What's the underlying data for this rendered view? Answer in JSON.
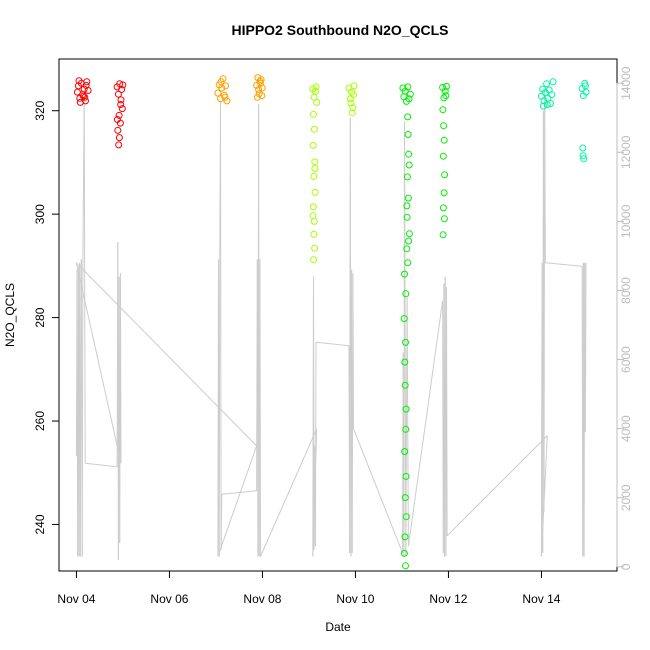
{
  "chart_data": {
    "type": "scatter",
    "title": "HIPPO2 Southbound N2O_QCLS",
    "xlabel": "Date",
    "ylabel": "N2O_QCLS",
    "xlim": [
      "2009-11-03T15:00",
      "2009-11-15T15:00"
    ],
    "ylim": [
      231,
      330
    ],
    "y2lim": [
      -120,
      14700
    ],
    "x_ticks": [
      {
        "label": "Nov 04",
        "value": "2009-11-04T00:00"
      },
      {
        "label": "Nov 06",
        "value": "2009-11-06T00:00"
      },
      {
        "label": "Nov 08",
        "value": "2009-11-08T00:00"
      },
      {
        "label": "Nov 10",
        "value": "2009-11-10T00:00"
      },
      {
        "label": "Nov 12",
        "value": "2009-11-12T00:00"
      },
      {
        "label": "Nov 14",
        "value": "2009-11-14T00:00"
      }
    ],
    "y_ticks": [
      {
        "label": "240",
        "value": 240
      },
      {
        "label": "260",
        "value": 260
      },
      {
        "label": "280",
        "value": 280
      },
      {
        "label": "300",
        "value": 300
      },
      {
        "label": "320",
        "value": 320
      }
    ],
    "y2_ticks": [
      {
        "label": "0",
        "value": 0
      },
      {
        "label": "2000",
        "value": 2000
      },
      {
        "label": "4000",
        "value": 4000
      },
      {
        "label": "6000",
        "value": 6000
      },
      {
        "label": "8000",
        "value": 8000
      },
      {
        "label": "10000",
        "value": 10000
      },
      {
        "label": "12000",
        "value": 12000
      },
      {
        "label": "14000",
        "value": 14000
      }
    ],
    "series": [
      {
        "color": "#ff0000",
        "points": [
          [
            "2009-11-04T00:30",
            323.6
          ],
          [
            "2009-11-04T01:00",
            324.8
          ],
          [
            "2009-11-04T01:45",
            322.4
          ],
          [
            "2009-11-04T02:30",
            325.3
          ],
          [
            "2009-11-04T03:15",
            323.1
          ],
          [
            "2009-11-04T04:00",
            324.2
          ],
          [
            "2009-11-04T04:40",
            321.9
          ],
          [
            "2009-11-04T05:20",
            325.6
          ],
          [
            "2009-11-04T06:00",
            323.9
          ],
          [
            "2009-11-04T02:00",
            321.6
          ],
          [
            "2009-11-04T03:40",
            322.8
          ],
          [
            "2009-11-04T05:00",
            324.9
          ],
          [
            "2009-11-04T01:20",
            325.8
          ],
          [
            "2009-11-04T04:20",
            322.6
          ]
        ]
      },
      {
        "color": "#ff0000",
        "points": [
          [
            "2009-11-04T21:00",
            324.6
          ],
          [
            "2009-11-04T21:40",
            323.2
          ],
          [
            "2009-11-04T22:20",
            325.2
          ],
          [
            "2009-11-04T23:00",
            322.1
          ],
          [
            "2009-11-04T23:40",
            320.4
          ],
          [
            "2009-11-04T22:00",
            319.1
          ],
          [
            "2009-11-04T22:40",
            317.6
          ],
          [
            "2009-11-04T21:20",
            316.2
          ],
          [
            "2009-11-04T22:10",
            314.8
          ],
          [
            "2009-11-04T21:50",
            313.4
          ],
          [
            "2009-11-04T23:20",
            324.1
          ],
          [
            "2009-11-04T23:55",
            325.0
          ],
          [
            "2009-11-04T21:10",
            318.3
          ],
          [
            "2009-11-04T22:50",
            321.2
          ]
        ]
      },
      {
        "color": "#ff9f00",
        "points": [
          [
            "2009-11-07T01:00",
            323.4
          ],
          [
            "2009-11-07T01:40",
            325.0
          ],
          [
            "2009-11-07T02:20",
            322.3
          ],
          [
            "2009-11-07T03:00",
            324.4
          ],
          [
            "2009-11-07T03:40",
            326.2
          ],
          [
            "2009-11-07T04:20",
            323.0
          ],
          [
            "2009-11-07T05:00",
            324.8
          ],
          [
            "2009-11-07T05:40",
            321.9
          ],
          [
            "2009-11-07T02:40",
            325.6
          ],
          [
            "2009-11-07T04:40",
            322.6
          ]
        ]
      },
      {
        "color": "#ff9f00",
        "points": [
          [
            "2009-11-07T21:00",
            324.9
          ],
          [
            "2009-11-07T21:40",
            326.4
          ],
          [
            "2009-11-07T22:20",
            323.3
          ],
          [
            "2009-11-07T23:00",
            325.3
          ],
          [
            "2009-11-07T23:40",
            322.9
          ],
          [
            "2009-11-07T22:00",
            324.1
          ],
          [
            "2009-11-07T23:20",
            326.0
          ],
          [
            "2009-11-07T21:20",
            322.6
          ],
          [
            "2009-11-07T22:40",
            325.7
          ],
          [
            "2009-11-07T23:55",
            324.4
          ]
        ]
      },
      {
        "color": "#a6ff00",
        "points": [
          [
            "2009-11-09T02:00",
            324.2
          ],
          [
            "2009-11-09T02:40",
            322.6
          ],
          [
            "2009-11-09T03:20",
            323.8
          ],
          [
            "2009-11-09T04:00",
            321.6
          ],
          [
            "2009-11-09T02:20",
            319.3
          ],
          [
            "2009-11-09T02:50",
            316.4
          ],
          [
            "2009-11-09T02:10",
            313.3
          ],
          [
            "2009-11-09T03:00",
            310.1
          ],
          [
            "2009-11-09T02:30",
            307.3
          ],
          [
            "2009-11-09T03:10",
            304.2
          ],
          [
            "2009-11-09T02:15",
            301.4
          ],
          [
            "2009-11-09T02:45",
            298.6
          ],
          [
            "2009-11-09T02:35",
            296.1
          ],
          [
            "2009-11-09T02:55",
            293.4
          ],
          [
            "2009-11-09T02:25",
            291.2
          ],
          [
            "2009-11-09T03:40",
            324.6
          ],
          [
            "2009-11-09T03:05",
            308.8
          ],
          [
            "2009-11-09T02:05",
            299.7
          ]
        ]
      },
      {
        "color": "#a6ff00",
        "points": [
          [
            "2009-11-09T20:40",
            324.4
          ],
          [
            "2009-11-09T21:20",
            322.3
          ],
          [
            "2009-11-09T22:00",
            323.6
          ],
          [
            "2009-11-09T22:40",
            320.6
          ],
          [
            "2009-11-09T23:20",
            324.8
          ],
          [
            "2009-11-09T21:40",
            321.5
          ],
          [
            "2009-11-09T22:20",
            319.6
          ],
          [
            "2009-11-09T23:00",
            323.1
          ]
        ]
      },
      {
        "color": "#00f000",
        "points": [
          [
            "2009-11-11T00:30",
            324.4
          ],
          [
            "2009-11-11T01:00",
            322.7
          ],
          [
            "2009-11-11T01:40",
            323.8
          ],
          [
            "2009-11-11T02:20",
            321.8
          ],
          [
            "2009-11-11T03:00",
            324.6
          ],
          [
            "2009-11-11T03:40",
            322.3
          ],
          [
            "2009-11-11T04:20",
            323.2
          ],
          [
            "2009-11-11T03:10",
            315.4
          ],
          [
            "2009-11-11T03:30",
            311.6
          ],
          [
            "2009-11-11T02:50",
            307.2
          ],
          [
            "2009-11-11T03:20",
            303.1
          ],
          [
            "2009-11-11T02:40",
            299.4
          ],
          [
            "2009-11-11T03:50",
            296.2
          ],
          [
            "2009-11-11T02:30",
            293.3
          ],
          [
            "2009-11-11T03:00",
            290.6
          ],
          [
            "2009-11-11T01:20",
            288.4
          ],
          [
            "2009-11-11T02:00",
            284.6
          ],
          [
            "2009-11-11T01:10",
            279.8
          ],
          [
            "2009-11-11T01:50",
            275.2
          ],
          [
            "2009-11-11T01:30",
            271.4
          ],
          [
            "2009-11-11T01:40",
            266.9
          ],
          [
            "2009-11-11T02:10",
            262.3
          ],
          [
            "2009-11-11T01:55",
            258.4
          ],
          [
            "2009-11-11T01:25",
            254.1
          ],
          [
            "2009-11-11T02:05",
            249.3
          ],
          [
            "2009-11-11T01:45",
            245.2
          ],
          [
            "2009-11-11T02:15",
            241.5
          ],
          [
            "2009-11-11T01:35",
            237.6
          ],
          [
            "2009-11-11T01:15",
            234.4
          ],
          [
            "2009-11-11T01:50",
            232.0
          ],
          [
            "2009-11-11T02:55",
            318.8
          ],
          [
            "2009-11-11T03:45",
            309.5
          ],
          [
            "2009-11-11T02:35",
            301.6
          ],
          [
            "2009-11-11T03:25",
            294.8
          ]
        ]
      },
      {
        "color": "#00f000",
        "points": [
          [
            "2009-11-11T21:00",
            324.5
          ],
          [
            "2009-11-11T21:40",
            322.5
          ],
          [
            "2009-11-11T22:20",
            323.8
          ],
          [
            "2009-11-11T23:00",
            324.7
          ],
          [
            "2009-11-11T21:10",
            320.2
          ],
          [
            "2009-11-11T21:30",
            317.1
          ],
          [
            "2009-11-11T21:50",
            314.3
          ],
          [
            "2009-11-11T21:20",
            311.2
          ],
          [
            "2009-11-11T22:00",
            307.6
          ],
          [
            "2009-11-11T21:45",
            304.1
          ],
          [
            "2009-11-11T21:25",
            301.2
          ],
          [
            "2009-11-11T21:55",
            299.1
          ],
          [
            "2009-11-11T21:15",
            296.0
          ],
          [
            "2009-11-11T22:40",
            322.9
          ]
        ]
      },
      {
        "color": "#00f5a5",
        "points": [
          [
            "2009-11-14T00:00",
            322.8
          ],
          [
            "2009-11-14T00:40",
            324.2
          ],
          [
            "2009-11-14T01:20",
            321.9
          ],
          [
            "2009-11-14T02:00",
            323.5
          ],
          [
            "2009-11-14T02:40",
            325.2
          ],
          [
            "2009-11-14T03:20",
            322.4
          ],
          [
            "2009-11-14T04:00",
            324.0
          ],
          [
            "2009-11-14T04:40",
            321.4
          ],
          [
            "2009-11-14T05:20",
            323.1
          ],
          [
            "2009-11-14T06:00",
            325.6
          ],
          [
            "2009-11-14T01:00",
            320.9
          ],
          [
            "2009-11-14T03:00",
            321.2
          ]
        ]
      },
      {
        "color": "#00f5a5",
        "points": [
          [
            "2009-11-14T21:00",
            324.3
          ],
          [
            "2009-11-14T21:40",
            322.9
          ],
          [
            "2009-11-14T22:20",
            325.3
          ],
          [
            "2009-11-14T23:00",
            323.6
          ],
          [
            "2009-11-14T21:20",
            312.8
          ],
          [
            "2009-11-14T21:30",
            311.3
          ],
          [
            "2009-11-14T21:50",
            310.7
          ],
          [
            "2009-11-14T22:40",
            324.8
          ]
        ]
      }
    ],
    "altitude_series": {
      "color": "#cccccc",
      "points": [
        [
          "2009-11-04T00:00",
          3200
        ],
        [
          "2009-11-04T00:20",
          8600
        ],
        [
          "2009-11-04T00:40",
          300
        ],
        [
          "2009-11-04T01:00",
          8700
        ],
        [
          "2009-11-04T01:20",
          300
        ],
        [
          "2009-11-04T01:40",
          8800
        ],
        [
          "2009-11-04T02:00",
          300
        ],
        [
          "2009-11-04T02:30",
          8900
        ],
        [
          "2009-11-04T03:00",
          300
        ],
        [
          "2009-11-04T03:20",
          8900
        ],
        [
          "2009-11-04T04:00",
          13600
        ],
        [
          "2009-11-04T04:30",
          3000
        ],
        [
          "2009-11-04T21:00",
          2900
        ],
        [
          "2009-11-04T21:20",
          9400
        ],
        [
          "2009-11-04T21:40",
          200
        ],
        [
          "2009-11-04T22:00",
          8400
        ],
        [
          "2009-11-04T22:20",
          700
        ],
        [
          "2009-11-04T22:40",
          8500
        ],
        [
          "2009-11-04T23:00",
          3000
        ],
        [
          "2009-11-04T00:00",
          8800
        ],
        [
          "2009-11-07T21:00",
          3500
        ],
        [
          "2009-11-07T01:00",
          300
        ],
        [
          "2009-11-07T01:20",
          8900
        ],
        [
          "2009-11-07T01:40",
          300
        ],
        [
          "2009-11-07T02:00",
          8900
        ],
        [
          "2009-11-07T02:20",
          13500
        ],
        [
          "2009-11-07T02:40",
          500
        ],
        [
          "2009-11-07T03:00",
          2100
        ],
        [
          "2009-11-07T21:00",
          2200
        ],
        [
          "2009-11-07T21:20",
          8900
        ],
        [
          "2009-11-07T21:40",
          300
        ],
        [
          "2009-11-07T22:00",
          13400
        ],
        [
          "2009-11-07T22:20",
          300
        ],
        [
          "2009-11-07T22:40",
          8900
        ],
        [
          "2009-11-07T23:00",
          300
        ],
        [
          "2009-11-09T04:00",
          4000
        ],
        [
          "2009-11-09T02:00",
          300
        ],
        [
          "2009-11-09T02:20",
          8400
        ],
        [
          "2009-11-09T02:40",
          500
        ],
        [
          "2009-11-09T03:00",
          3500
        ],
        [
          "2009-11-09T03:20",
          600
        ],
        [
          "2009-11-09T03:40",
          6500
        ],
        [
          "2009-11-09T20:40",
          6400
        ],
        [
          "2009-11-09T21:00",
          400
        ],
        [
          "2009-11-09T21:20",
          13000
        ],
        [
          "2009-11-09T21:40",
          300
        ],
        [
          "2009-11-09T22:00",
          8600
        ],
        [
          "2009-11-09T22:20",
          400
        ],
        [
          "2009-11-09T22:40",
          8500
        ],
        [
          "2009-11-09T23:00",
          4000
        ],
        [
          "2009-11-11T00:20",
          400
        ],
        [
          "2009-11-11T00:40",
          6200
        ],
        [
          "2009-11-11T01:00",
          300
        ],
        [
          "2009-11-11T01:20",
          12900
        ],
        [
          "2009-11-11T02:00",
          300
        ],
        [
          "2009-11-11T02:40",
          7800
        ],
        [
          "2009-11-11T03:20",
          600
        ],
        [
          "2009-11-11T21:00",
          7700
        ],
        [
          "2009-11-11T21:20",
          400
        ],
        [
          "2009-11-11T21:40",
          8200
        ],
        [
          "2009-11-11T22:00",
          300
        ],
        [
          "2009-11-11T22:20",
          8400
        ],
        [
          "2009-11-11T22:40",
          300
        ],
        [
          "2009-11-11T23:00",
          8100
        ],
        [
          "2009-11-11T23:20",
          900
        ],
        [
          "2009-11-14T03:00",
          3800
        ],
        [
          "2009-11-14T00:00",
          300
        ],
        [
          "2009-11-14T00:20",
          8800
        ],
        [
          "2009-11-14T00:40",
          400
        ],
        [
          "2009-11-14T01:00",
          13200
        ],
        [
          "2009-11-14T01:20",
          1600
        ],
        [
          "2009-11-14T01:40",
          13800
        ],
        [
          "2009-11-14T02:00",
          8800
        ],
        [
          "2009-11-14T21:00",
          8700
        ],
        [
          "2009-11-14T21:20",
          300
        ],
        [
          "2009-11-14T21:40",
          8800
        ],
        [
          "2009-11-14T22:00",
          300
        ],
        [
          "2009-11-14T22:20",
          8800
        ],
        [
          "2009-11-14T22:40",
          3900
        ],
        [
          "2009-11-14T23:00",
          8800
        ]
      ]
    },
    "grid": false,
    "legend": "none"
  }
}
